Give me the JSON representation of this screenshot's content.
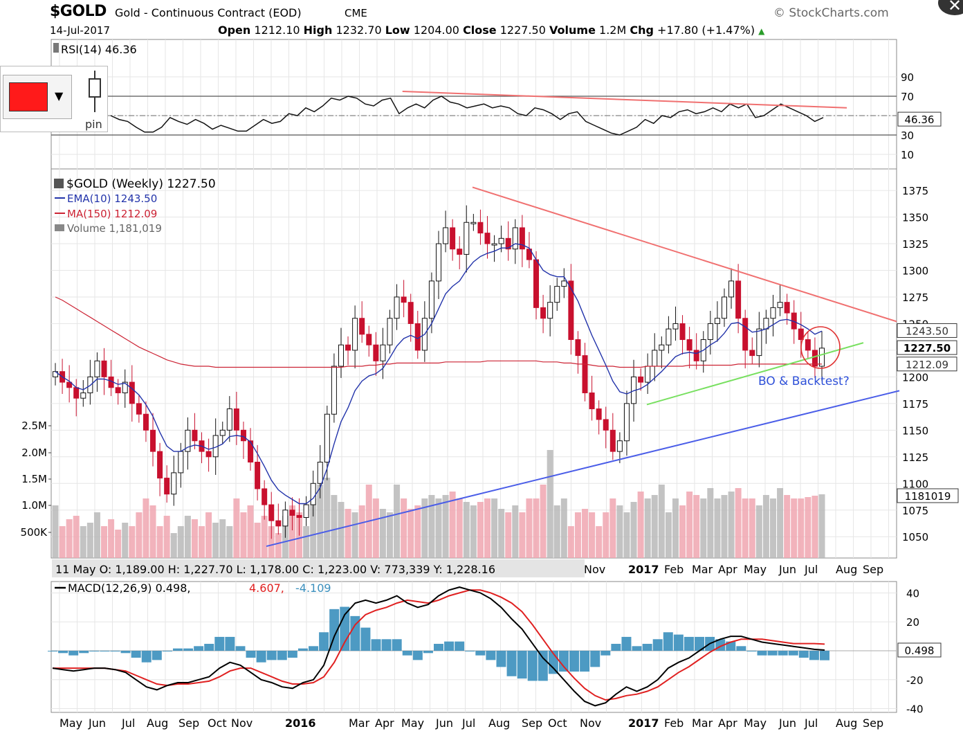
{
  "header": {
    "symbol": "$GOLD",
    "name": "Gold - Continuous Contract (EOD)",
    "exchange": "CME",
    "source": "© StockCharts.com",
    "date": "14-Jul-2017",
    "open_label": "Open",
    "open": "1212.10",
    "high_label": "High",
    "high": "1232.70",
    "low_label": "Low",
    "low": "1204.00",
    "close_label": "Close",
    "close": "1227.50",
    "volume_label": "Volume",
    "volume": "1.2M",
    "chg_label": "Chg",
    "chg": "+17.80 (+1.47%)"
  },
  "widget": {
    "pin_label": "pin",
    "swatch_color": "#ff1a1a"
  },
  "chart_data": [
    {
      "type": "line",
      "panel": "rsi",
      "title": "RSI(14) 46.36",
      "y_ticks": [
        90,
        70,
        50,
        30,
        10
      ],
      "ylim": [
        0,
        100
      ],
      "value_tag": "46.36",
      "levels": [
        70,
        30
      ],
      "series": [
        {
          "name": "RSI(14)",
          "values": [
            50,
            46,
            44,
            38,
            33,
            33,
            38,
            48,
            44,
            41,
            46,
            42,
            36,
            40,
            37,
            34,
            34,
            40,
            46,
            42,
            44,
            52,
            50,
            58,
            54,
            60,
            68,
            66,
            70,
            68,
            62,
            60,
            66,
            68,
            52,
            58,
            62,
            58,
            66,
            70,
            64,
            62,
            58,
            60,
            62,
            58,
            60,
            58,
            52,
            50,
            58,
            56,
            52,
            46,
            52,
            54,
            44,
            40,
            36,
            32,
            30,
            34,
            38,
            46,
            42,
            50,
            48,
            54,
            56,
            52,
            54,
            58,
            54,
            62,
            58,
            62,
            48,
            50,
            56,
            62,
            58,
            54,
            50,
            44,
            48
          ]
        }
      ],
      "trendline": {
        "color": "#f07070",
        "from": [
          0.17,
          75
        ],
        "to": [
          0.97,
          58
        ]
      }
    },
    {
      "type": "candlestick",
      "panel": "price",
      "title": "$GOLD (Weekly) 1227.50",
      "legend": [
        "EMA(10) 1243.50",
        "MA(150) 1212.09",
        "Volume 1,181,019"
      ],
      "y_ticks": [
        1375,
        1350,
        1325,
        1300,
        1275,
        1250,
        1225,
        1200,
        1175,
        1150,
        1125,
        1100,
        1075,
        1050
      ],
      "ylim": [
        1030,
        1390
      ],
      "volume_ticks": [
        "2.5M",
        "2.0M",
        "1.5M",
        "1.0M",
        "500K"
      ],
      "value_tags": [
        "1243.50",
        "1227.50",
        "1212.09",
        "1181019"
      ],
      "annotation": "BO & Backtest?",
      "closes": [
        1205,
        1195,
        1190,
        1180,
        1185,
        1200,
        1215,
        1200,
        1190,
        1185,
        1195,
        1175,
        1165,
        1150,
        1130,
        1105,
        1090,
        1110,
        1130,
        1150,
        1140,
        1130,
        1125,
        1145,
        1150,
        1170,
        1150,
        1140,
        1120,
        1095,
        1080,
        1065,
        1060,
        1075,
        1070,
        1068,
        1080,
        1100,
        1120,
        1165,
        1210,
        1230,
        1225,
        1255,
        1240,
        1230,
        1215,
        1230,
        1255,
        1275,
        1270,
        1250,
        1225,
        1255,
        1290,
        1325,
        1340,
        1320,
        1315,
        1345,
        1345,
        1335,
        1325,
        1325,
        1330,
        1320,
        1340,
        1320,
        1310,
        1265,
        1255,
        1270,
        1285,
        1290,
        1235,
        1220,
        1185,
        1170,
        1160,
        1150,
        1130,
        1140,
        1175,
        1200,
        1195,
        1210,
        1225,
        1230,
        1245,
        1250,
        1235,
        1225,
        1215,
        1235,
        1250,
        1255,
        1275,
        1290,
        1255,
        1225,
        1220,
        1245,
        1255,
        1265,
        1270,
        1260,
        1245,
        1235,
        1225,
        1210,
        1227
      ],
      "ema10": [
        1205,
        1200,
        1196,
        1190,
        1188,
        1192,
        1198,
        1198,
        1196,
        1193,
        1194,
        1189,
        1183,
        1174,
        1163,
        1148,
        1135,
        1130,
        1130,
        1134,
        1136,
        1135,
        1132,
        1134,
        1137,
        1144,
        1145,
        1144,
        1139,
        1128,
        1116,
        1103,
        1094,
        1089,
        1085,
        1081,
        1081,
        1086,
        1096,
        1114,
        1137,
        1158,
        1171,
        1187,
        1196,
        1201,
        1203,
        1208,
        1218,
        1229,
        1236,
        1239,
        1236,
        1240,
        1250,
        1264,
        1278,
        1285,
        1290,
        1300,
        1308,
        1313,
        1316,
        1318,
        1321,
        1321,
        1325,
        1324,
        1321,
        1310,
        1300,
        1296,
        1294,
        1294,
        1283,
        1271,
        1255,
        1239,
        1225,
        1211,
        1196,
        1186,
        1184,
        1187,
        1189,
        1193,
        1199,
        1205,
        1212,
        1219,
        1222,
        1223,
        1222,
        1225,
        1230,
        1234,
        1241,
        1250,
        1251,
        1247,
        1242,
        1243,
        1245,
        1249,
        1253,
        1254,
        1252,
        1249,
        1245,
        1240,
        1243
      ],
      "ma150": [
        1275,
        1272,
        1268,
        1264,
        1260,
        1256,
        1252,
        1248,
        1244,
        1240,
        1236,
        1232,
        1228,
        1225,
        1222,
        1219,
        1216,
        1214,
        1212,
        1211,
        1210,
        1210,
        1210,
        1209,
        1209,
        1209,
        1209,
        1209,
        1209,
        1209,
        1209,
        1209,
        1209,
        1209,
        1209,
        1209,
        1209,
        1209,
        1209,
        1209,
        1209,
        1209,
        1210,
        1210,
        1210,
        1211,
        1211,
        1212,
        1212,
        1213,
        1213,
        1213,
        1213,
        1213,
        1213,
        1213,
        1214,
        1214,
        1214,
        1214,
        1214,
        1214,
        1215,
        1215,
        1215,
        1215,
        1215,
        1215,
        1215,
        1215,
        1214,
        1214,
        1214,
        1213,
        1213,
        1212,
        1212,
        1211,
        1210,
        1210,
        1210,
        1209,
        1209,
        1209,
        1209,
        1210,
        1210,
        1210,
        1210,
        1210,
        1210,
        1211,
        1211,
        1211,
        1211,
        1211,
        1211,
        1211,
        1212,
        1212,
        1212,
        1212,
        1212,
        1212,
        1212,
        1212,
        1212,
        1212,
        1212,
        1212,
        1212
      ],
      "trendlines": [
        {
          "color": "#f07070",
          "from": [
            1375,
            0.54
          ],
          "to": [
            1250,
            1.0
          ]
        },
        {
          "color": "#78e060",
          "from": [
            1175,
            0.73
          ],
          "to": [
            1232,
            0.97
          ]
        },
        {
          "color": "#4a5de8",
          "from": [
            1040,
            0.25
          ],
          "to": [
            1185,
            1.0
          ]
        }
      ]
    },
    {
      "type": "line",
      "panel": "macd",
      "title": "MACD(12,26,9) 0.498, 4.607, -4.109",
      "title_parts": [
        "MACD(12,26,9) 0.498,",
        "4.607,",
        "-4.109"
      ],
      "y_ticks": [
        40,
        20,
        -20,
        -40
      ],
      "ylim": [
        -45,
        48
      ],
      "value_tag": "0.498",
      "series": [
        {
          "name": "MACD",
          "color": "#000000",
          "values": [
            -12,
            -13,
            -14,
            -13,
            -12,
            -12,
            -13,
            -15,
            -20,
            -25,
            -27,
            -24,
            -22,
            -22,
            -20,
            -18,
            -12,
            -8,
            -10,
            -15,
            -20,
            -22,
            -25,
            -26,
            -22,
            -20,
            -10,
            10,
            25,
            33,
            35,
            33,
            35,
            38,
            33,
            30,
            32,
            38,
            42,
            44,
            42,
            40,
            36,
            30,
            22,
            15,
            5,
            -5,
            -12,
            -20,
            -28,
            -35,
            -38,
            -36,
            -30,
            -25,
            -28,
            -25,
            -20,
            -12,
            -8,
            -5,
            0,
            5,
            8,
            10,
            10,
            8,
            6,
            5,
            4,
            3,
            2,
            1,
            0.5
          ]
        },
        {
          "name": "Signal",
          "color": "#e02020",
          "values": [
            -12,
            -12,
            -12,
            -12,
            -12,
            -12,
            -13,
            -14,
            -17,
            -20,
            -23,
            -24,
            -23,
            -23,
            -22,
            -21,
            -18,
            -14,
            -12,
            -12,
            -15,
            -18,
            -21,
            -23,
            -23,
            -22,
            -18,
            -8,
            6,
            18,
            25,
            28,
            30,
            33,
            35,
            34,
            33,
            35,
            38,
            40,
            42,
            42,
            40,
            37,
            33,
            27,
            18,
            8,
            -2,
            -11,
            -19,
            -26,
            -31,
            -34,
            -33,
            -31,
            -30,
            -28,
            -25,
            -20,
            -15,
            -11,
            -6,
            -1,
            3,
            6,
            8,
            8,
            8,
            7,
            6,
            5,
            5,
            5,
            4.6
          ]
        }
      ],
      "histogram_color": "#3a8fbd"
    }
  ],
  "x_axis": {
    "price_labels": [
      "Nov",
      "2017",
      "Feb",
      "Mar",
      "Apr",
      "May",
      "Jun",
      "Jul",
      "Aug",
      "Sep"
    ],
    "bottom_labels": [
      "May",
      "Jun",
      "Jul",
      "Aug",
      "Sep",
      "Oct",
      "Nov",
      "2016",
      "Mar",
      "Apr",
      "May",
      "Jun",
      "Jul",
      "Aug",
      "Sep",
      "Oct",
      "Nov",
      "2017",
      "Feb",
      "Mar",
      "Apr",
      "May",
      "Jun",
      "Jul",
      "Aug",
      "Sep"
    ]
  },
  "tooltip": {
    "date": "11 May",
    "o_label": "O:",
    "o": "1,189.00",
    "h_label": "H:",
    "h": "1,227.70",
    "l_label": "L:",
    "l": "1,178.00",
    "c_label": "C:",
    "c": "1,223.00",
    "v_label": "V:",
    "v": "773,339",
    "y_label": "Y:",
    "y": "1,228.16"
  }
}
